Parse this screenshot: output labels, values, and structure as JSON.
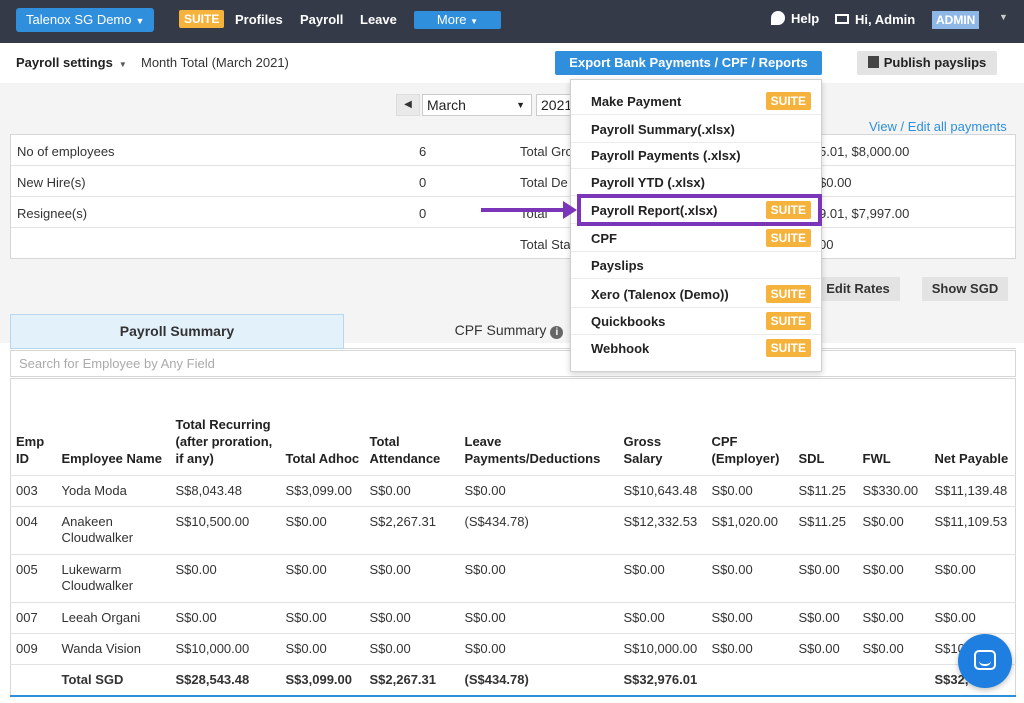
{
  "topbar": {
    "org_button": "Talenox SG Demo",
    "suite_badge": "SUITE",
    "nav": [
      "Profiles",
      "Payroll",
      "Leave"
    ],
    "more_button": "More",
    "help": "Help",
    "greeting": "Hi, Admin",
    "admin_badge": "ADMIN"
  },
  "subbar": {
    "settings_label": "Payroll settings",
    "month_total": "Month Total (March 2021)",
    "export_button": "Export Bank Payments / CPF / Reports",
    "publish_button": "Publish payslips"
  },
  "period": {
    "month": "March",
    "year": "2021"
  },
  "view_edit_link": "View / Edit all payments",
  "stats": [
    {
      "label": "No of employees",
      "value": "6",
      "label2": "Total Gro",
      "value2": "5.01, $8,000.00"
    },
    {
      "label": "New Hire(s)",
      "value": "0",
      "label2": "Total De",
      "value2": "$0.00"
    },
    {
      "label": "Resignee(s)",
      "value": "0",
      "label2": "Total",
      "value2": "9.01, $7,997.00"
    },
    {
      "label": "",
      "value": "",
      "label2": "Total Sta",
      "value2": "00"
    }
  ],
  "buttons": {
    "edit_rates": "Edit Rates",
    "show_sgd": "Show SGD"
  },
  "tabs": {
    "payroll_summary": "Payroll Summary",
    "cpf_summary": "CPF Summary",
    "info_glyph": "i"
  },
  "search_placeholder": "Search for Employee by Any Field",
  "table": {
    "headers": [
      "Emp ID",
      "Employee Name",
      "Total Recurring (after proration, if any)",
      "Total Adhoc",
      "Total Attendance",
      "Leave Payments/Deductions",
      "Gross Salary",
      "CPF (Employer)",
      "SDL",
      "FWL",
      "Net Payable"
    ],
    "rows": [
      [
        "003",
        "Yoda Moda",
        "S$8,043.48",
        "S$3,099.00",
        "S$0.00",
        "S$0.00",
        "S$10,643.48",
        "S$0.00",
        "S$11.25",
        "S$330.00",
        "S$11,139.48"
      ],
      [
        "004",
        "Anakeen Cloudwalker",
        "S$10,500.00",
        "S$0.00",
        "S$2,267.31",
        "(S$434.78)",
        "S$12,332.53",
        "S$1,020.00",
        "S$11.25",
        "S$0.00",
        "S$11,109.53"
      ],
      [
        "005",
        "Lukewarm Cloudwalker",
        "S$0.00",
        "S$0.00",
        "S$0.00",
        "S$0.00",
        "S$0.00",
        "S$0.00",
        "S$0.00",
        "S$0.00",
        "S$0.00"
      ],
      [
        "007",
        "Leeah Organi",
        "S$0.00",
        "S$0.00",
        "S$0.00",
        "S$0.00",
        "S$0.00",
        "S$0.00",
        "S$0.00",
        "S$0.00",
        "S$0.00"
      ],
      [
        "009",
        "Wanda Vision",
        "S$10,000.00",
        "S$0.00",
        "S$0.00",
        "S$0.00",
        "S$10,000.00",
        "S$0.00",
        "S$0.00",
        "S$0.00",
        "S$10"
      ]
    ],
    "total": [
      "",
      "Total SGD",
      "S$28,543.48",
      "S$3,099.00",
      "S$2,267.31",
      "(S$434.78)",
      "S$32,976.01",
      "",
      "",
      "",
      "S$32,"
    ]
  },
  "dropdown": [
    {
      "label": "Make Payment",
      "suite": "SUITE"
    },
    {
      "label": "Payroll Summary(.xlsx)",
      "suite": ""
    },
    {
      "label": "Payroll Payments (.xlsx)",
      "suite": ""
    },
    {
      "label": "Payroll YTD (.xlsx)",
      "suite": ""
    },
    {
      "label": "Payroll Report(.xlsx)",
      "suite": "SUITE"
    },
    {
      "label": "CPF",
      "suite": "SUITE"
    },
    {
      "label": "Payslips",
      "suite": ""
    },
    {
      "label": "Xero (Talenox (Demo))",
      "suite": "SUITE"
    },
    {
      "label": "Quickbooks",
      "suite": "SUITE"
    },
    {
      "label": "Webhook",
      "suite": "SUITE"
    }
  ],
  "colors": {
    "topbar": "#343a48",
    "primary_blue": "#2f8fdc",
    "suite_orange": "#f5b33c",
    "annotation_purple": "#7a35b8"
  }
}
